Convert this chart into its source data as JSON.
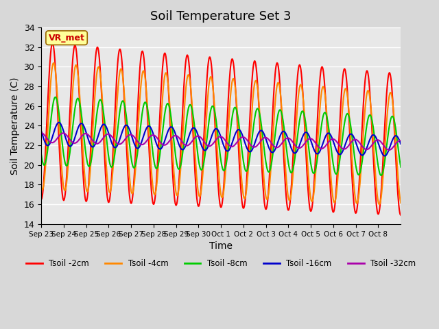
{
  "title": "Soil Temperature Set 3",
  "xlabel": "Time",
  "ylabel": "Soil Temperature (C)",
  "ylim": [
    14,
    34
  ],
  "yticks": [
    14,
    16,
    18,
    20,
    22,
    24,
    26,
    28,
    30,
    32,
    34
  ],
  "xtick_labels": [
    "Sep 23",
    "Sep 24",
    "Sep 25",
    "Sep 26",
    "Sep 27",
    "Sep 28",
    "Sep 29",
    "Sep 30",
    "Oct 1",
    "Oct 2",
    "Oct 3",
    "Oct 4",
    "Oct 5",
    "Oct 6",
    "Oct 7",
    "Oct 8"
  ],
  "annotation_text": "VR_met",
  "annotation_color": "#cc0000",
  "annotation_bg": "#ffff99",
  "fig_bg_color": "#d8d8d8",
  "plot_bg": "#e8e8e8",
  "colors": {
    "Tsoil -2cm": "#ff0000",
    "Tsoil -4cm": "#ff8800",
    "Tsoil -8cm": "#00cc00",
    "Tsoil -16cm": "#0000cc",
    "Tsoil -32cm": "#aa00aa"
  },
  "linewidth": 1.5
}
